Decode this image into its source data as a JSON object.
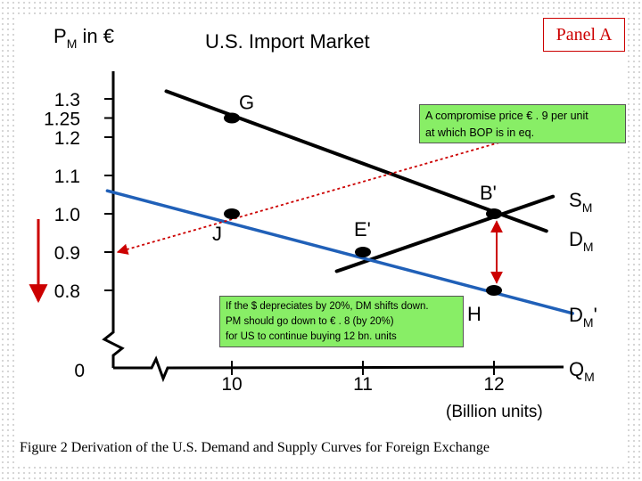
{
  "panel_label": "Panel A",
  "chart_data": {
    "type": "line",
    "title": "U.S. Import  Market",
    "ylabel": {
      "main": "P",
      "sub": "M",
      "rest": " in €"
    },
    "xlabel": {
      "main": "Q",
      "sub": "M"
    },
    "x_unit_label": "(Billion units)",
    "x_ticks": [
      0,
      10,
      11,
      12
    ],
    "x_tick_labels": [
      "0",
      "10",
      "11",
      "12"
    ],
    "y_ticks": [
      0.8,
      0.9,
      1.0,
      1.1,
      1.2,
      1.25,
      1.3
    ],
    "y_tick_labels": [
      "0.8",
      "0.9",
      "1.0",
      "1.1",
      "1.2",
      "1.25",
      "1.3"
    ],
    "y_zero_label": "0",
    "series": [
      {
        "id": "sm",
        "label_main": "S",
        "label_sub": "M",
        "color": "#000000",
        "points": [
          [
            10.8,
            0.85
          ],
          [
            12.45,
            1.045
          ]
        ]
      },
      {
        "id": "dm",
        "label_main": "D",
        "label_sub": "M",
        "color": "#000000",
        "points": [
          [
            9.5,
            1.32
          ],
          [
            12.4,
            0.955
          ]
        ]
      },
      {
        "id": "dm_prime",
        "label_main": "D",
        "label_sub": "M",
        "label_prime": "'",
        "color": "#2060b8",
        "points": [
          [
            9.05,
            1.06
          ],
          [
            12.6,
            0.74
          ]
        ]
      }
    ],
    "points": [
      {
        "label": "G",
        "x": 10,
        "y": 1.25
      },
      {
        "label": "J",
        "x": 10,
        "y": 1.0
      },
      {
        "label": "E'",
        "x": 11,
        "y": 0.9
      },
      {
        "label": "B'",
        "x": 12,
        "y": 1.0
      },
      {
        "label": "H",
        "x": 12,
        "y": 0.8
      }
    ],
    "annotations": {
      "compromise_note": [
        "A compromise price € . 9 per unit",
        "at which BOP is in eq."
      ],
      "depreciation_note": [
        "If the $ depreciates by 20%, DM shifts down.",
        "PM should go down to  € . 8 (by 20%)",
        "for US to continue buying 12 bn. units"
      ]
    },
    "colors": {
      "arrow_red": "#cc0000",
      "note_green": "#88ee66",
      "dm_prime_blue": "#2060b8"
    }
  },
  "caption": "Figure 2 Derivation of the U.S. Demand and Supply Curves for Foreign Exchange"
}
